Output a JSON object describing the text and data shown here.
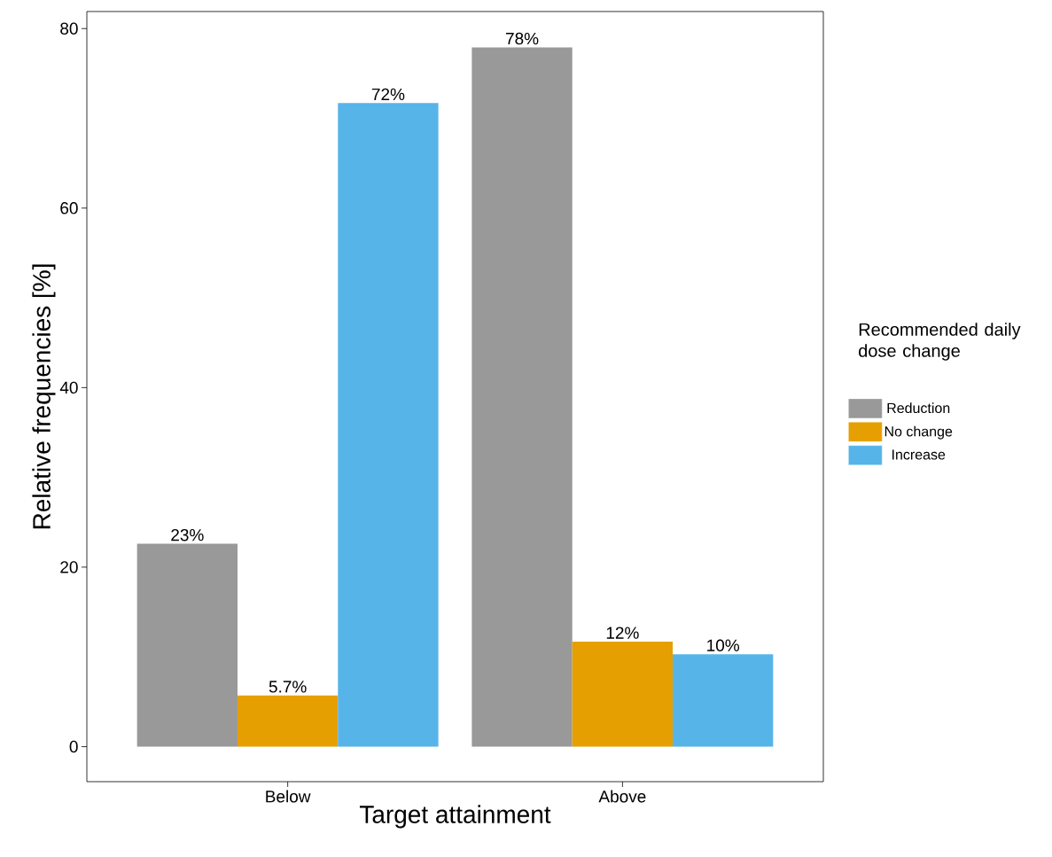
{
  "chart_data": {
    "type": "bar",
    "xlabel": "Target attainment",
    "ylabel": "Relative frequencies [%]",
    "legend_title": "Recommended daily dose change",
    "legend": "right",
    "grid": false,
    "categories": [
      "Below",
      "Above"
    ],
    "series": [
      {
        "name": "Reduction",
        "color": "#999999",
        "values": [
          22.6,
          77.9
        ],
        "value_labels": [
          "23%",
          "78%"
        ]
      },
      {
        "name": "No change",
        "color": "#e69f00",
        "values": [
          5.7,
          11.7
        ],
        "value_labels": [
          "5.7%",
          "12%"
        ]
      },
      {
        "name": "Increase",
        "color": "#56b4e9",
        "values": [
          71.7,
          10.3
        ],
        "value_labels": [
          "72%",
          "10%"
        ]
      }
    ],
    "ylim": [
      -3.9,
      81.9
    ],
    "yticks": [
      0,
      20,
      40,
      60,
      80
    ]
  }
}
